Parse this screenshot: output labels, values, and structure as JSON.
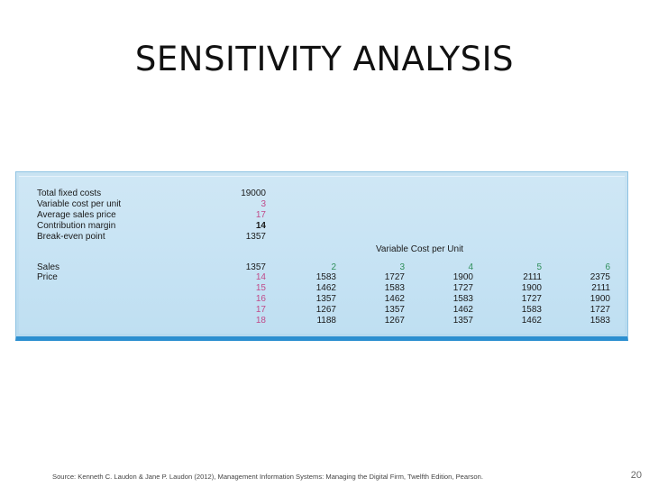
{
  "slide": {
    "title": "SENSITIVITY ANALYSIS",
    "footer": "Source: Kenneth C. Laudon & Jane P. Laudon (2012),  Management Information Systems: Managing the Digital Firm, Twelfth Edition, Pearson.",
    "page_number": "20"
  },
  "colors": {
    "input_highlight": "#c04c8a",
    "cost_highlight": "#2f8f5a",
    "panel_bottom_bar": "#2c8fd0"
  },
  "table": {
    "inputs": [
      {
        "label": "Total fixed costs",
        "value": "19000"
      },
      {
        "label": "Variable cost per unit",
        "value": "3"
      },
      {
        "label": "Average sales price",
        "value": "17"
      },
      {
        "label": "Contribution margin",
        "value": "14"
      },
      {
        "label": "Break-even point",
        "value": "1357"
      }
    ],
    "variable_header": "Variable Cost per Unit",
    "sales_label": "Sales",
    "price_label": "Price",
    "sales_base": "1357",
    "variable_costs": [
      "2",
      "3",
      "4",
      "5",
      "6"
    ],
    "prices": [
      "14",
      "15",
      "16",
      "17",
      "18"
    ],
    "grid": [
      [
        "1583",
        "1727",
        "1900",
        "2111",
        "2375"
      ],
      [
        "1462",
        "1583",
        "1727",
        "1900",
        "2111"
      ],
      [
        "1357",
        "1462",
        "1583",
        "1727",
        "1900"
      ],
      [
        "1267",
        "1357",
        "1462",
        "1583",
        "1727"
      ],
      [
        "1188",
        "1267",
        "1357",
        "1462",
        "1583"
      ]
    ]
  }
}
